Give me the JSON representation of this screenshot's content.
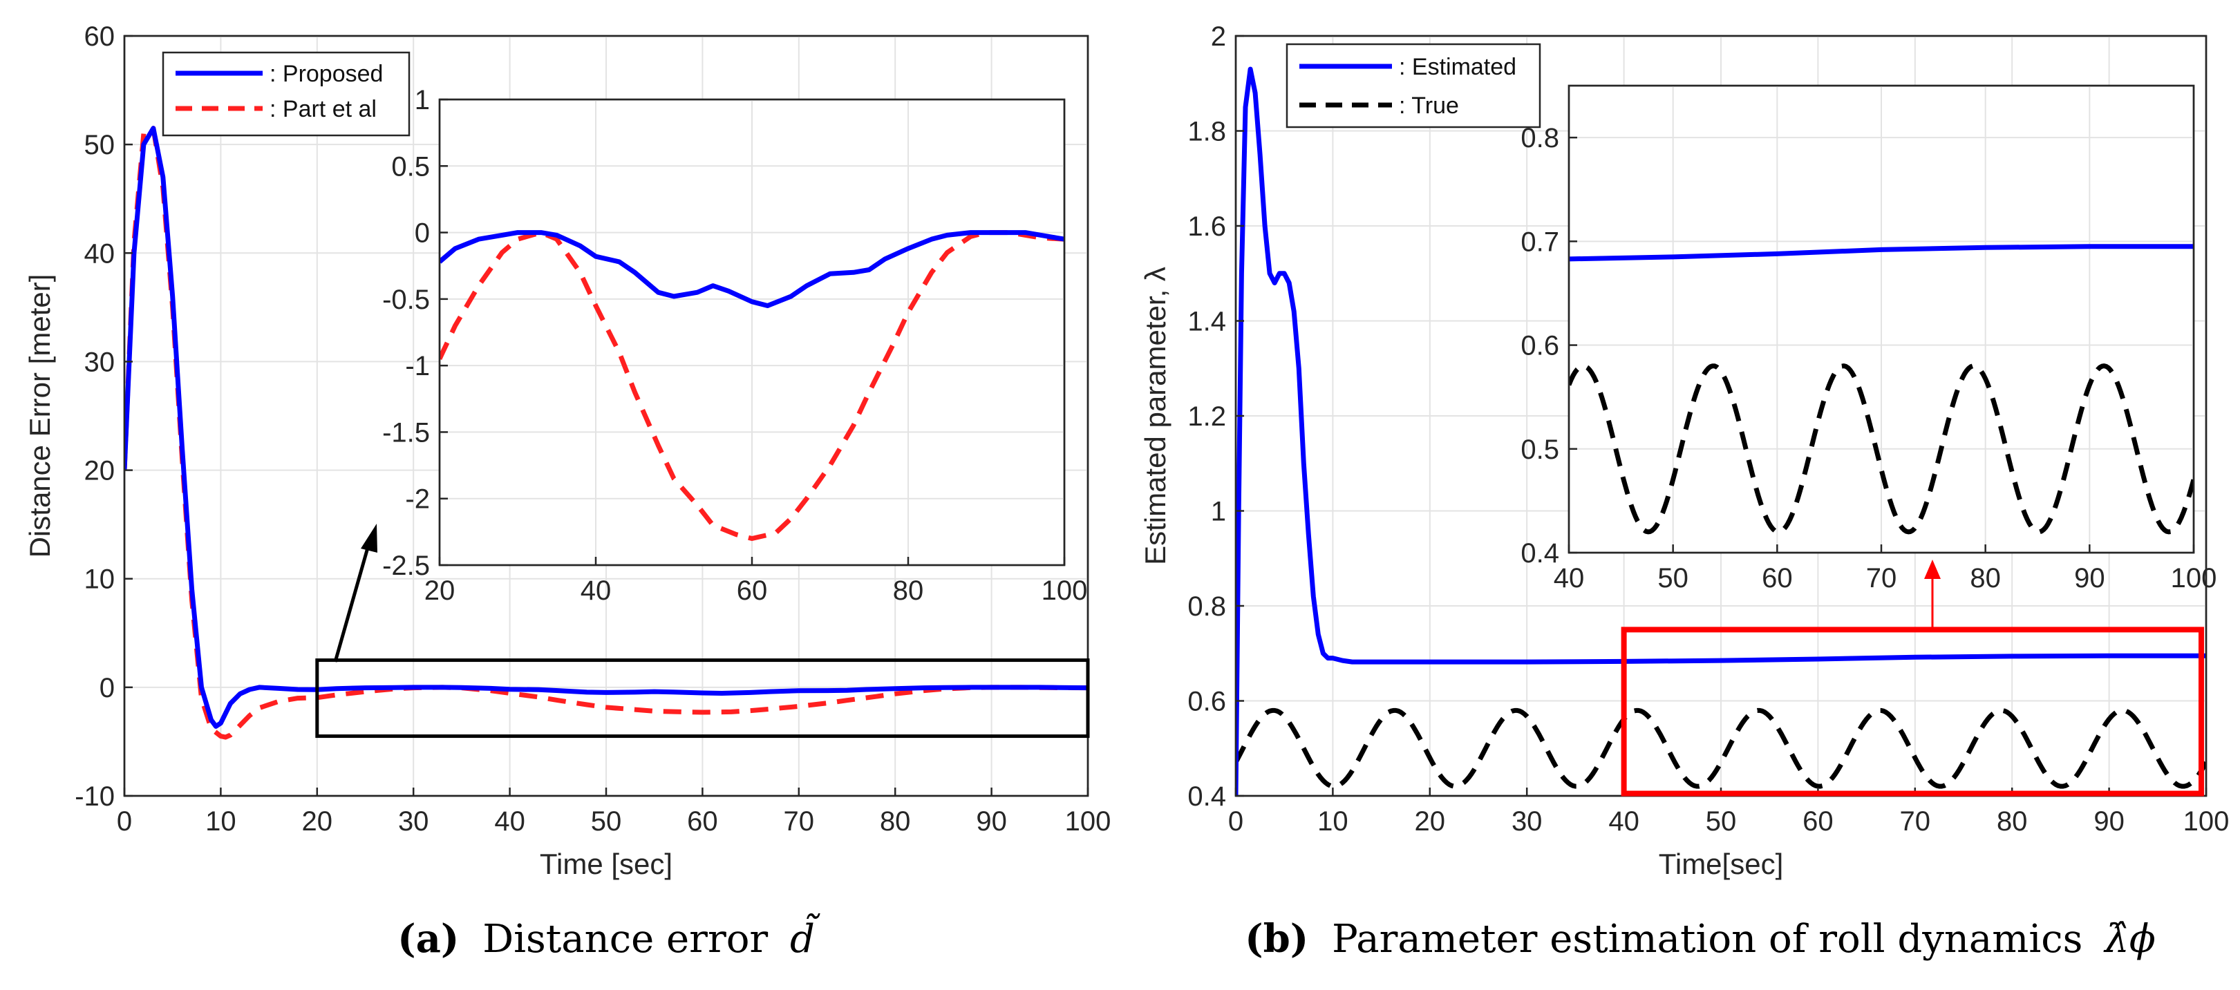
{
  "colors": {
    "proposed": "#0000ff",
    "part": "#ff2020",
    "estimated": "#0000ff",
    "true": "#000000",
    "box_a": "#000000",
    "box_b": "#ff0000",
    "grid": "#e3e3e3"
  },
  "chart_data": [
    {
      "id": "a",
      "type": "line",
      "caption_letter": "(a)",
      "caption_text": "Distance error",
      "caption_symbol": "d̃",
      "xlabel": "Time [sec]",
      "ylabel": "Distance Error [meter]",
      "xlim": [
        0,
        100
      ],
      "ylim": [
        -10,
        60
      ],
      "xticks": [
        0,
        10,
        20,
        30,
        40,
        50,
        60,
        70,
        80,
        90,
        100
      ],
      "yticks": [
        -10,
        0,
        10,
        20,
        30,
        40,
        50,
        60
      ],
      "legend": [
        ": Proposed",
        ": Part et al"
      ],
      "zoom_box": {
        "x": [
          20,
          100
        ],
        "y": [
          -4.5,
          2.5
        ]
      },
      "series": [
        {
          "name": "Proposed",
          "style": "solid",
          "x": [
            0,
            1,
            2,
            3,
            4,
            5,
            6,
            7,
            8,
            9,
            9.5,
            10,
            11,
            12,
            13,
            14,
            16,
            18,
            20,
            22,
            25,
            28,
            30,
            33,
            35,
            38,
            40,
            43,
            45,
            48,
            50,
            53,
            55,
            57,
            60,
            62,
            65,
            67,
            70,
            73,
            75,
            77,
            80,
            83,
            85,
            88,
            90,
            93,
            95,
            97,
            99,
            100
          ],
          "y": [
            20,
            40,
            50,
            51.5,
            47,
            36,
            22,
            9,
            0,
            -3,
            -3.6,
            -3.3,
            -1.5,
            -0.6,
            -0.2,
            0,
            -0.1,
            -0.2,
            -0.22,
            -0.12,
            -0.05,
            -0.02,
            0,
            0,
            -0.02,
            -0.1,
            -0.18,
            -0.22,
            -0.3,
            -0.45,
            -0.48,
            -0.45,
            -0.4,
            -0.44,
            -0.52,
            -0.55,
            -0.48,
            -0.4,
            -0.31,
            -0.3,
            -0.28,
            -0.2,
            -0.12,
            -0.05,
            -0.02,
            0,
            0,
            0,
            0,
            -0.02,
            -0.04,
            -0.05
          ]
        },
        {
          "name": "Part et al",
          "style": "dashed",
          "x": [
            0,
            1,
            2,
            3,
            4,
            5,
            6,
            7,
            8,
            9,
            10,
            10.5,
            11,
            12,
            13,
            14,
            16,
            18,
            20,
            22,
            25,
            28,
            30,
            33,
            35,
            38,
            40,
            43,
            45,
            48,
            50,
            53,
            55,
            58,
            60,
            63,
            65,
            67,
            70,
            73,
            75,
            78,
            80,
            83,
            85,
            88,
            90,
            93,
            95,
            97,
            100
          ],
          "y": [
            20,
            41,
            51,
            51.5,
            46,
            35,
            21,
            8,
            -1,
            -3.8,
            -4.5,
            -4.6,
            -4.4,
            -3.5,
            -2.6,
            -1.9,
            -1.3,
            -1,
            -0.95,
            -0.7,
            -0.4,
            -0.15,
            -0.05,
            0,
            -0.05,
            -0.3,
            -0.55,
            -0.9,
            -1.2,
            -1.6,
            -1.85,
            -2.05,
            -2.2,
            -2.27,
            -2.3,
            -2.26,
            -2.15,
            -2.0,
            -1.75,
            -1.45,
            -1.2,
            -0.85,
            -0.6,
            -0.3,
            -0.15,
            -0.03,
            0,
            0,
            -0.02,
            -0.04,
            -0.05
          ]
        }
      ],
      "inset": {
        "xlim": [
          20,
          100
        ],
        "ylim": [
          -2.5,
          1
        ],
        "xticks": [
          20,
          40,
          60,
          80,
          100
        ],
        "yticks": [
          -2.5,
          -2,
          -1.5,
          -1,
          -0.5,
          0,
          0.5,
          1
        ],
        "ytick_labels": [
          "-2.5",
          "-2",
          "-1.5",
          "-1",
          "-0.5",
          "0",
          "0.5",
          "1"
        ]
      }
    },
    {
      "id": "b",
      "type": "line",
      "caption_letter": "(b)",
      "caption_text": "Parameter estimation of roll dynamics",
      "caption_symbol": "λ̂ϕ",
      "xlabel": "Time[sec]",
      "ylabel": "Estimated parameter, λ",
      "xlim": [
        0,
        100
      ],
      "ylim": [
        0.4,
        2
      ],
      "xticks": [
        0,
        10,
        20,
        30,
        40,
        50,
        60,
        70,
        80,
        90,
        100
      ],
      "yticks": [
        0.4,
        0.6,
        0.8,
        1,
        1.2,
        1.4,
        1.6,
        1.8,
        2
      ],
      "ytick_labels": [
        "0.4",
        "0.6",
        "0.8",
        "1",
        "1.2",
        "1.4",
        "1.6",
        "1.8",
        "2"
      ],
      "legend": [
        ": Estimated",
        ": True"
      ],
      "zoom_box": {
        "x": [
          40,
          99.5
        ],
        "y": [
          0.405,
          0.75
        ]
      },
      "series": [
        {
          "name": "Estimated",
          "style": "solid",
          "x": [
            0,
            0.3,
            0.6,
            1,
            1.5,
            2,
            2.5,
            3,
            3.5,
            4,
            4.5,
            5,
            5.5,
            6,
            6.5,
            7,
            7.5,
            8,
            8.5,
            9,
            9.5,
            10,
            11,
            12,
            13,
            20,
            30,
            40,
            50,
            60,
            70,
            80,
            90,
            100
          ],
          "y": [
            0.4,
            1.0,
            1.5,
            1.85,
            1.93,
            1.88,
            1.75,
            1.6,
            1.5,
            1.48,
            1.5,
            1.5,
            1.48,
            1.42,
            1.3,
            1.1,
            0.95,
            0.82,
            0.74,
            0.7,
            0.69,
            0.69,
            0.685,
            0.682,
            0.682,
            0.682,
            0.682,
            0.683,
            0.685,
            0.688,
            0.692,
            0.694,
            0.695,
            0.695
          ]
        },
        {
          "name": "True",
          "style": "dashed",
          "formula": "0.5 + 0.08 * sin(2 * pi * (t - 0.75) / 12.5)",
          "amplitude": 0.08,
          "offset": 0.5,
          "period": 12.5,
          "phase": 0.75
        }
      ],
      "inset": {
        "xlim": [
          40,
          100
        ],
        "ylim": [
          0.4,
          0.85
        ],
        "xticks": [
          40,
          50,
          60,
          70,
          80,
          90,
          100
        ],
        "yticks": [
          0.4,
          0.5,
          0.6,
          0.7,
          0.8
        ],
        "ytick_labels": [
          "0.4",
          "0.5",
          "0.6",
          "0.7",
          "0.8"
        ]
      }
    }
  ]
}
